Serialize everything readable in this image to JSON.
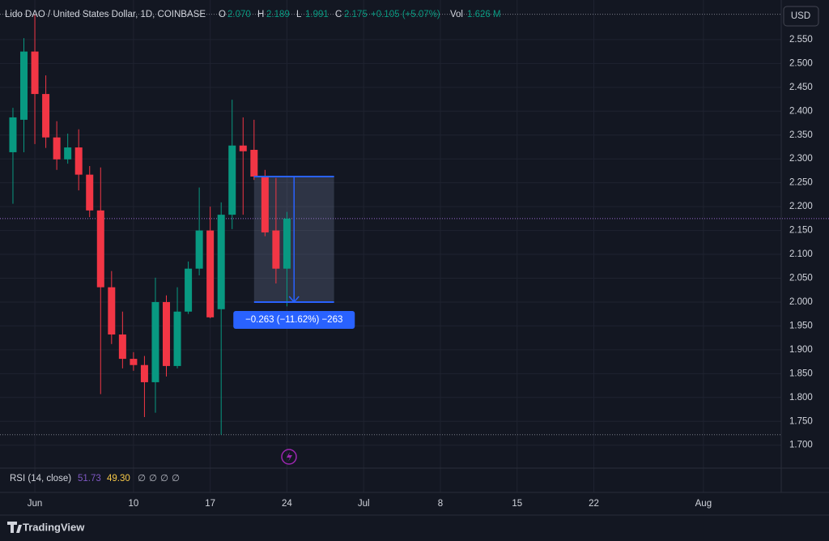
{
  "chart_data": {
    "type": "candlestick",
    "title": "Lido DAO / United States Dollar, 1D, COINBASE",
    "ohlc_header": {
      "labels": [
        "O",
        "H",
        "L",
        "C"
      ],
      "values": [
        "2.070",
        "2.189",
        "1.991",
        "2.175"
      ],
      "change": "+0.105 (+5.07%)",
      "vol_label": "Vol",
      "vol": "1.626 M"
    },
    "currency": "USD",
    "x": [
      -1,
      0,
      1,
      2,
      3,
      4,
      5,
      6,
      7,
      8,
      9,
      10,
      11,
      12,
      13,
      14,
      15,
      16,
      17,
      18,
      19,
      20,
      21,
      22,
      23,
      24
    ],
    "open": [
      2.314,
      2.382,
      2.525,
      2.436,
      2.345,
      2.299,
      2.324,
      2.267,
      2.192,
      2.031,
      1.932,
      1.881,
      1.868,
      1.832,
      2.0,
      1.866,
      1.98,
      2.07,
      2.15,
      1.985,
      2.183,
      2.328,
      2.319,
      2.263,
      2.15,
      2.07
    ],
    "high": [
      2.407,
      2.553,
      2.603,
      2.475,
      2.379,
      2.353,
      2.362,
      2.285,
      2.282,
      2.065,
      1.98,
      1.895,
      1.887,
      2.051,
      2.014,
      2.031,
      2.085,
      2.24,
      2.2,
      2.209,
      2.424,
      2.387,
      2.382,
      2.277,
      2.26,
      2.189
    ],
    "low": [
      2.206,
      2.314,
      2.331,
      2.323,
      2.277,
      2.29,
      2.234,
      2.178,
      1.807,
      1.912,
      1.861,
      1.856,
      1.759,
      1.768,
      1.844,
      1.861,
      1.975,
      2.056,
      1.966,
      1.722,
      2.153,
      2.183,
      2.256,
      2.138,
      2.039,
      1.991
    ],
    "close": [
      2.387,
      2.525,
      2.436,
      2.345,
      2.299,
      2.324,
      2.267,
      2.192,
      2.031,
      1.932,
      1.881,
      1.868,
      1.832,
      2.0,
      1.866,
      1.98,
      2.07,
      2.15,
      1.968,
      2.183,
      2.328,
      2.316,
      2.263,
      2.146,
      2.07,
      2.175
    ],
    "up_color": "#089981",
    "down_color": "#f23645",
    "xlim": [
      -2.18,
      69.1
    ],
    "xticks": [
      {
        "value": 1,
        "label": "Jun"
      },
      10,
      17,
      24,
      {
        "value": 31,
        "label": "Jul"
      },
      {
        "value": 38,
        "label": "8"
      },
      {
        "value": 45,
        "label": "15"
      },
      {
        "value": 52,
        "label": "22"
      },
      {
        "value": 62,
        "label": "Aug"
      }
    ],
    "ylim": [
      1.652,
      2.633
    ],
    "yticks": [
      {
        "value": 1.7,
        "label": "1.700"
      },
      {
        "value": 1.75,
        "label": "1.750"
      },
      {
        "value": 1.8,
        "label": "1.800"
      },
      {
        "value": 1.85,
        "label": "1.850"
      },
      {
        "value": 1.9,
        "label": "1.900"
      },
      {
        "value": 1.95,
        "label": "1.950"
      },
      {
        "value": 2.0,
        "label": "2.000"
      },
      {
        "value": 2.05,
        "label": "2.050"
      },
      {
        "value": 2.1,
        "label": "2.100"
      },
      {
        "value": 2.15,
        "label": "2.150"
      },
      {
        "value": 2.2,
        "label": "2.200"
      },
      {
        "value": 2.25,
        "label": "2.250"
      },
      {
        "value": 2.3,
        "label": "2.300"
      },
      {
        "value": 2.35,
        "label": "2.350"
      },
      {
        "value": 2.4,
        "label": "2.400"
      },
      {
        "value": 2.45,
        "label": "2.450"
      },
      {
        "value": 2.5,
        "label": "2.500"
      },
      {
        "value": 2.55,
        "label": "2.550"
      }
    ],
    "grid": true,
    "measure": {
      "from": 2.263,
      "to": 2.0,
      "x": [
        21,
        28.3
      ],
      "label": "−0.263 (−11.62%) −263"
    },
    "rsi": {
      "label": "RSI (14, close)",
      "value": "51.73",
      "ma": "49.30",
      "extra": [
        "∅",
        "∅",
        "∅",
        "∅"
      ]
    },
    "brand": "TradingView"
  }
}
